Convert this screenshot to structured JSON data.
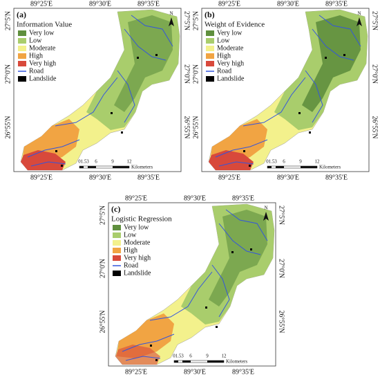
{
  "panels": [
    {
      "label": "(a)",
      "title": "Information Value"
    },
    {
      "label": "(b)",
      "title": "Weight of Evidence"
    },
    {
      "label": "(c)",
      "title": "Logistic Regression"
    }
  ],
  "legend": [
    {
      "label": "Very low",
      "color": "#5f8f3e"
    },
    {
      "label": "Low",
      "color": "#a9cd6c"
    },
    {
      "label": "Moderate",
      "color": "#f3f18c"
    },
    {
      "label": "High",
      "color": "#f1a443"
    },
    {
      "label": "Very high",
      "color": "#d8493b"
    },
    {
      "label": "Road",
      "color": "#3355dd"
    },
    {
      "label": "Landslide",
      "color": "#000000"
    }
  ],
  "coordinates": {
    "longitude": [
      "89°25'E",
      "89°30'E",
      "89°35'E"
    ],
    "latitude": [
      "27°5'N",
      "27°0'N",
      "26°55'N"
    ]
  },
  "scale": {
    "ticks": [
      "0",
      "1.5",
      "3",
      "6",
      "9",
      "12"
    ],
    "unit": "Kilometers"
  },
  "north": "N"
}
